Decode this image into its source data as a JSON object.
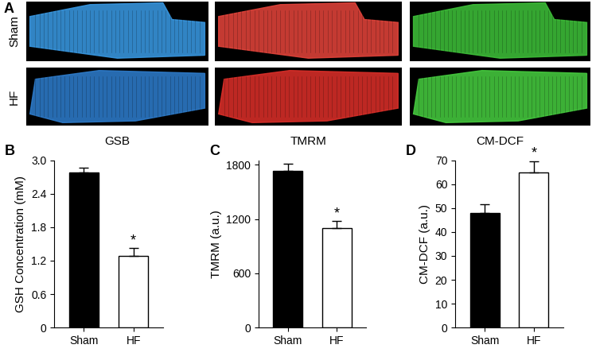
{
  "image_panel": {
    "label": "A",
    "rows": [
      "Sham",
      "HF"
    ],
    "columns": [
      "GSB",
      "TMRM",
      "CM-DCF"
    ]
  },
  "chart_data": [
    {
      "type": "bar",
      "title": "B",
      "y_label": "GSH Concentration (mM)",
      "categories": [
        "Sham",
        "HF"
      ],
      "values": [
        2.78,
        1.28
      ],
      "errors": [
        0.08,
        0.14
      ],
      "colors": [
        "#000000",
        "#ffffff"
      ],
      "ylim": [
        0,
        3.0
      ],
      "yticks": [
        0,
        0.6,
        1.2,
        1.8,
        2.4,
        {
          "value": 3.0,
          "label": "3.0"
        }
      ],
      "annotations": [
        {
          "category": "HF",
          "text": "*"
        }
      ]
    },
    {
      "type": "bar",
      "title": "C",
      "y_label": "TMRM (a.u.)",
      "categories": [
        "Sham",
        "HF"
      ],
      "values": [
        1730,
        1100
      ],
      "errors": [
        80,
        75
      ],
      "colors": [
        "#000000",
        "#ffffff"
      ],
      "ylim": [
        0,
        1850
      ],
      "yticks": [
        0,
        600,
        1200,
        1800
      ],
      "annotations": [
        {
          "category": "HF",
          "text": "*"
        }
      ]
    },
    {
      "type": "bar",
      "title": "D",
      "y_label": "CM-DCF (a.u.)",
      "categories": [
        "Sham",
        "HF"
      ],
      "values": [
        48,
        65
      ],
      "errors": [
        3.5,
        4.5
      ],
      "colors": [
        "#000000",
        "#ffffff"
      ],
      "ylim": [
        0,
        70
      ],
      "yticks": [
        0,
        10,
        20,
        30,
        40,
        50,
        60,
        70
      ],
      "annotations": [
        {
          "category": "HF",
          "text": "*"
        }
      ]
    }
  ]
}
